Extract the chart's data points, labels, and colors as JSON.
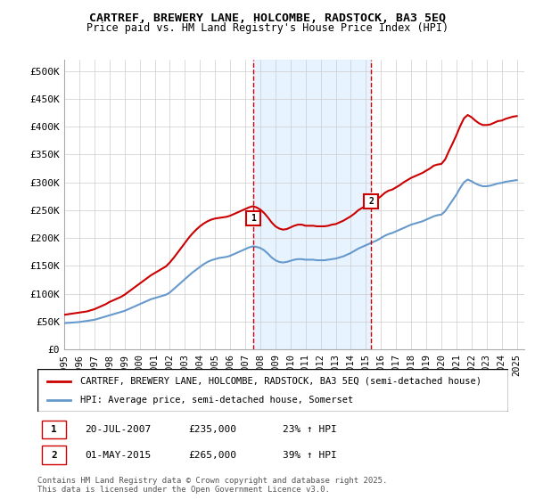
{
  "title": "CARTREF, BREWERY LANE, HOLCOMBE, RADSTOCK, BA3 5EQ",
  "subtitle": "Price paid vs. HM Land Registry's House Price Index (HPI)",
  "background_color": "#ffffff",
  "plot_bg_color": "#ffffff",
  "grid_color": "#cccccc",
  "ylim": [
    0,
    520000
  ],
  "yticks": [
    0,
    50000,
    100000,
    150000,
    200000,
    250000,
    300000,
    350000,
    400000,
    450000,
    500000
  ],
  "ytick_labels": [
    "£0",
    "£50K",
    "£100K",
    "£150K",
    "£200K",
    "£250K",
    "£300K",
    "£350K",
    "£400K",
    "£450K",
    "£500K"
  ],
  "xlim_start": 1995.0,
  "xlim_end": 2025.5,
  "xtick_years": [
    1995,
    1996,
    1997,
    1998,
    1999,
    2000,
    2001,
    2002,
    2003,
    2004,
    2005,
    2006,
    2007,
    2008,
    2009,
    2010,
    2011,
    2012,
    2013,
    2014,
    2015,
    2016,
    2017,
    2018,
    2019,
    2020,
    2021,
    2022,
    2023,
    2024,
    2025
  ],
  "sale1_x": 2007.55,
  "sale1_y": 235000,
  "sale1_label": "1",
  "sale2_x": 2015.33,
  "sale2_y": 265000,
  "sale2_label": "2",
  "sale_color": "#cc0000",
  "hpi_color": "#6699cc",
  "shade_color": "#ddeeff",
  "dashed_color": "#cc0000",
  "legend_line1": "CARTREF, BREWERY LANE, HOLCOMBE, RADSTOCK, BA3 5EQ (semi-detached house)",
  "legend_line2": "HPI: Average price, semi-detached house, Somerset",
  "annotation1_date": "20-JUL-2007",
  "annotation1_price": "£235,000",
  "annotation1_hpi": "23% ↑ HPI",
  "annotation2_date": "01-MAY-2015",
  "annotation2_price": "£265,000",
  "annotation2_hpi": "39% ↑ HPI",
  "footer": "Contains HM Land Registry data © Crown copyright and database right 2025.\nThis data is licensed under the Open Government Licence v3.0.",
  "hpi_data_x": [
    1995.0,
    1995.25,
    1995.5,
    1995.75,
    1996.0,
    1996.25,
    1996.5,
    1996.75,
    1997.0,
    1997.25,
    1997.5,
    1997.75,
    1998.0,
    1998.25,
    1998.5,
    1998.75,
    1999.0,
    1999.25,
    1999.5,
    1999.75,
    2000.0,
    2000.25,
    2000.5,
    2000.75,
    2001.0,
    2001.25,
    2001.5,
    2001.75,
    2002.0,
    2002.25,
    2002.5,
    2002.75,
    2003.0,
    2003.25,
    2003.5,
    2003.75,
    2004.0,
    2004.25,
    2004.5,
    2004.75,
    2005.0,
    2005.25,
    2005.5,
    2005.75,
    2006.0,
    2006.25,
    2006.5,
    2006.75,
    2007.0,
    2007.25,
    2007.5,
    2007.75,
    2008.0,
    2008.25,
    2008.5,
    2008.75,
    2009.0,
    2009.25,
    2009.5,
    2009.75,
    2010.0,
    2010.25,
    2010.5,
    2010.75,
    2011.0,
    2011.25,
    2011.5,
    2011.75,
    2012.0,
    2012.25,
    2012.5,
    2012.75,
    2013.0,
    2013.25,
    2013.5,
    2013.75,
    2014.0,
    2014.25,
    2014.5,
    2014.75,
    2015.0,
    2015.25,
    2015.5,
    2015.75,
    2016.0,
    2016.25,
    2016.5,
    2016.75,
    2017.0,
    2017.25,
    2017.5,
    2017.75,
    2018.0,
    2018.25,
    2018.5,
    2018.75,
    2019.0,
    2019.25,
    2019.5,
    2019.75,
    2020.0,
    2020.25,
    2020.5,
    2020.75,
    2021.0,
    2021.25,
    2021.5,
    2021.75,
    2022.0,
    2022.25,
    2022.5,
    2022.75,
    2023.0,
    2023.25,
    2023.5,
    2023.75,
    2024.0,
    2024.25,
    2024.5,
    2024.75,
    2025.0
  ],
  "hpi_data_y": [
    47000,
    47500,
    48000,
    48500,
    49000,
    50000,
    51000,
    52000,
    53000,
    55000,
    57000,
    59000,
    61000,
    63000,
    65000,
    67000,
    69000,
    72000,
    75000,
    78000,
    81000,
    84000,
    87000,
    90000,
    92000,
    94000,
    96000,
    98000,
    102000,
    108000,
    114000,
    120000,
    126000,
    132000,
    138000,
    143000,
    148000,
    153000,
    157000,
    160000,
    162000,
    164000,
    165000,
    166000,
    168000,
    171000,
    174000,
    177000,
    180000,
    183000,
    185000,
    184000,
    182000,
    178000,
    172000,
    165000,
    160000,
    157000,
    156000,
    157000,
    159000,
    161000,
    162000,
    162000,
    161000,
    161000,
    161000,
    160000,
    160000,
    160000,
    161000,
    162000,
    163000,
    165000,
    167000,
    170000,
    173000,
    177000,
    181000,
    184000,
    187000,
    190000,
    193000,
    196000,
    200000,
    204000,
    207000,
    209000,
    212000,
    215000,
    218000,
    221000,
    224000,
    226000,
    228000,
    230000,
    233000,
    236000,
    239000,
    241000,
    242000,
    248000,
    258000,
    268000,
    278000,
    290000,
    300000,
    305000,
    302000,
    298000,
    295000,
    293000,
    293000,
    294000,
    296000,
    298000,
    299000,
    301000,
    302000,
    303000,
    304000
  ],
  "price_data_x": [
    1995.0,
    1995.25,
    1995.5,
    1995.75,
    1996.0,
    1996.25,
    1996.5,
    1996.75,
    1997.0,
    1997.25,
    1997.5,
    1997.75,
    1998.0,
    1998.25,
    1998.5,
    1998.75,
    1999.0,
    1999.25,
    1999.5,
    1999.75,
    2000.0,
    2000.25,
    2000.5,
    2000.75,
    2001.0,
    2001.25,
    2001.5,
    2001.75,
    2002.0,
    2002.25,
    2002.5,
    2002.75,
    2003.0,
    2003.25,
    2003.5,
    2003.75,
    2004.0,
    2004.25,
    2004.5,
    2004.75,
    2005.0,
    2005.25,
    2005.5,
    2005.75,
    2006.0,
    2006.25,
    2006.5,
    2006.75,
    2007.0,
    2007.25,
    2007.5,
    2007.75,
    2008.0,
    2008.25,
    2008.5,
    2008.75,
    2009.0,
    2009.25,
    2009.5,
    2009.75,
    2010.0,
    2010.25,
    2010.5,
    2010.75,
    2011.0,
    2011.25,
    2011.5,
    2011.75,
    2012.0,
    2012.25,
    2012.5,
    2012.75,
    2013.0,
    2013.25,
    2013.5,
    2013.75,
    2014.0,
    2014.25,
    2014.5,
    2014.75,
    2015.0,
    2015.25,
    2015.5,
    2015.75,
    2016.0,
    2016.25,
    2016.5,
    2016.75,
    2017.0,
    2017.25,
    2017.5,
    2017.75,
    2018.0,
    2018.25,
    2018.5,
    2018.75,
    2019.0,
    2019.25,
    2019.5,
    2019.75,
    2020.0,
    2020.25,
    2020.5,
    2020.75,
    2021.0,
    2021.25,
    2021.5,
    2021.75,
    2022.0,
    2022.25,
    2022.5,
    2022.75,
    2023.0,
    2023.25,
    2023.5,
    2023.75,
    2024.0,
    2024.25,
    2024.5,
    2024.75,
    2025.0
  ],
  "price_data_y": [
    62000,
    63000,
    64000,
    65000,
    66000,
    67000,
    68000,
    70000,
    72000,
    75000,
    78000,
    81000,
    85000,
    88000,
    91000,
    94000,
    98000,
    103000,
    108000,
    113000,
    118000,
    123000,
    128000,
    133000,
    137000,
    141000,
    145000,
    149000,
    156000,
    164000,
    173000,
    182000,
    191000,
    200000,
    208000,
    215000,
    221000,
    226000,
    230000,
    233000,
    235000,
    236000,
    237000,
    238000,
    240000,
    243000,
    246000,
    249000,
    252000,
    255000,
    257000,
    255000,
    251000,
    245000,
    237000,
    228000,
    221000,
    217000,
    215000,
    216000,
    219000,
    222000,
    224000,
    224000,
    222000,
    222000,
    222000,
    221000,
    221000,
    221000,
    222000,
    224000,
    225000,
    228000,
    231000,
    235000,
    239000,
    244000,
    250000,
    254000,
    258000,
    262000,
    266000,
    270000,
    275000,
    281000,
    285000,
    287000,
    291000,
    295000,
    300000,
    304000,
    308000,
    311000,
    314000,
    317000,
    321000,
    325000,
    330000,
    332000,
    333000,
    341000,
    356000,
    370000,
    385000,
    401000,
    415000,
    421000,
    417000,
    411000,
    406000,
    403000,
    403000,
    404000,
    407000,
    410000,
    411000,
    414000,
    416000,
    418000,
    419000
  ]
}
